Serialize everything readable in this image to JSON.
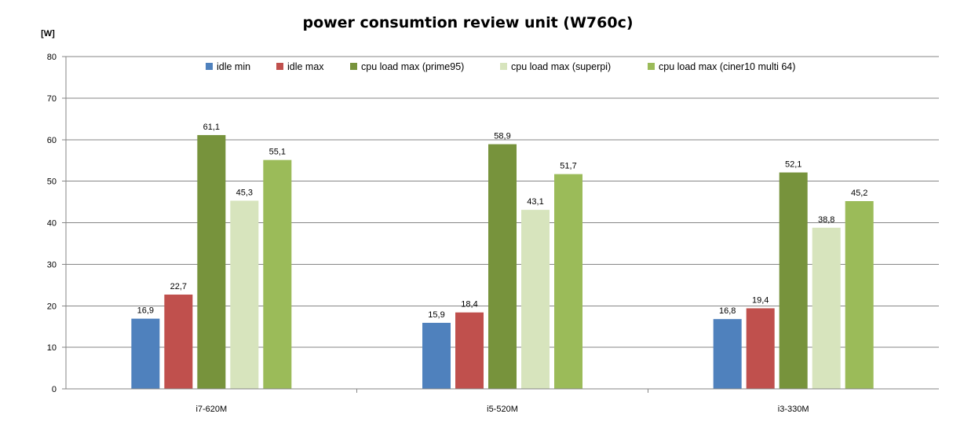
{
  "chart_data": {
    "type": "bar",
    "title": "power consumtion review unit (W760c)",
    "ylabel": "[W]",
    "xlabel": "",
    "ylim": [
      0,
      80
    ],
    "yticks": [
      0,
      10,
      20,
      30,
      40,
      50,
      60,
      70,
      80
    ],
    "grid": true,
    "legend_position": "top",
    "categories": [
      "i7-620M",
      "i5-520M",
      "i3-330M"
    ],
    "series": [
      {
        "name": "idle min",
        "color": "#4F81BD",
        "values": [
          16.9,
          15.9,
          16.8
        ],
        "labels": [
          "16,9",
          "15,9",
          "16,8"
        ]
      },
      {
        "name": "idle max",
        "color": "#C0504D",
        "values": [
          22.7,
          18.4,
          19.4
        ],
        "labels": [
          "22,7",
          "18,4",
          "19,4"
        ]
      },
      {
        "name": "cpu load max (prime95)",
        "color": "#77933C",
        "values": [
          61.1,
          58.9,
          52.1
        ],
        "labels": [
          "61,1",
          "58,9",
          "52,1"
        ]
      },
      {
        "name": "cpu load max (superpi)",
        "color": "#D7E4BD",
        "values": [
          45.3,
          43.1,
          38.8
        ],
        "labels": [
          "45,3",
          "43,1",
          "38,8"
        ]
      },
      {
        "name": "cpu load max (ciner10 multi 64)",
        "color": "#9BBB59",
        "values": [
          55.1,
          51.7,
          45.2
        ],
        "labels": [
          "55,1",
          "51,7",
          "45,2"
        ]
      }
    ]
  }
}
